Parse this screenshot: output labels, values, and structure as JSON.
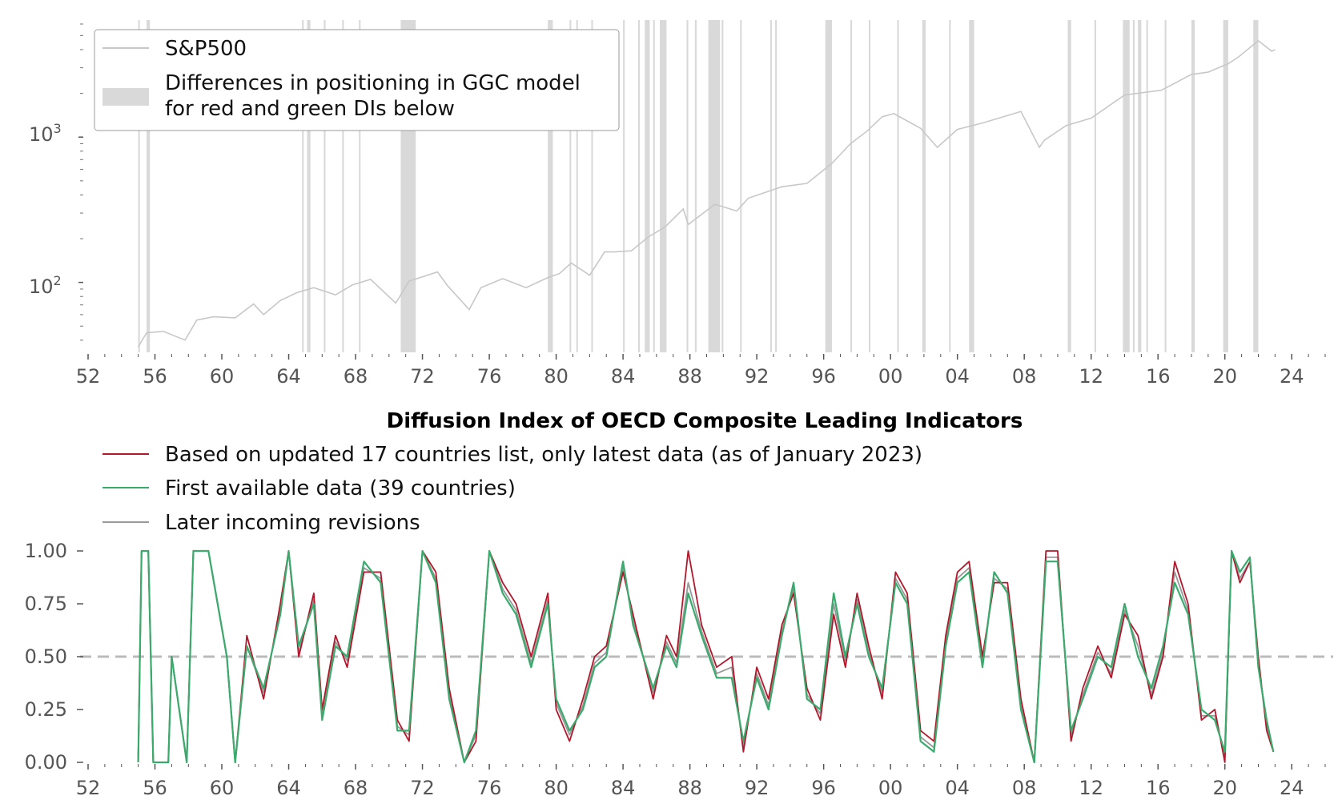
{
  "chart_data": [
    {
      "type": "line",
      "yscale": "log",
      "title": "",
      "xlabel": "",
      "ylabel": "",
      "xlim": [
        1952,
        2026
      ],
      "ylim": [
        33,
        6000
      ],
      "x_tick_labels": [
        "52",
        "56",
        "60",
        "64",
        "68",
        "72",
        "76",
        "80",
        "84",
        "88",
        "92",
        "96",
        "00",
        "04",
        "08",
        "12",
        "16",
        "20",
        "24"
      ],
      "y_tick_labels": [
        {
          "base": "10",
          "exp": "2",
          "value": 100
        },
        {
          "base": "10",
          "exp": "3",
          "value": 1000
        }
      ],
      "legend": [
        {
          "label": "S&P500",
          "kind": "line",
          "color": "#c8c8c8"
        },
        {
          "label": "Differences in positioning in GGC model",
          "label2": "for red and green DIs below",
          "kind": "patch",
          "color": "#d9d9d9"
        }
      ],
      "legend_position": "top-left",
      "series": [
        {
          "name": "S&P500",
          "color": "#c8c8c8",
          "x": [
            1955.0,
            1955.5,
            1956.5,
            1957.8,
            1958.5,
            1959.5,
            1960.8,
            1961.9,
            1962.5,
            1963.5,
            1964.5,
            1965.5,
            1966.8,
            1967.8,
            1968.9,
            1970.4,
            1971.2,
            1972.9,
            1973.5,
            1974.8,
            1975.5,
            1976.8,
            1978.2,
            1979.5,
            1980.2,
            1980.9,
            1982.0,
            1982.9,
            1983.5,
            1984.5,
            1985.5,
            1986.5,
            1987.6,
            1987.9,
            1989.5,
            1990.8,
            1991.5,
            1993.5,
            1995.0,
            1996.5,
            1997.6,
            1998.6,
            1999.5,
            2000.2,
            2001.8,
            2002.8,
            2004.0,
            2005.5,
            2007.8,
            2008.9,
            2009.2,
            2010.5,
            2012.0,
            2014.0,
            2015.5,
            2016.2,
            2018.0,
            2019.0,
            2020.2,
            2020.8,
            2022.0,
            2022.8,
            2023.0
          ],
          "y": [
            36,
            45,
            46,
            40,
            55,
            58,
            57,
            71,
            60,
            75,
            85,
            92,
            82,
            96,
            105,
            72,
            102,
            118,
            95,
            65,
            92,
            106,
            92,
            108,
            115,
            136,
            112,
            162,
            162,
            165,
            205,
            240,
            320,
            250,
            345,
            310,
            380,
            455,
            480,
            660,
            900,
            1100,
            1380,
            1450,
            1150,
            850,
            1130,
            1250,
            1500,
            850,
            950,
            1200,
            1350,
            1950,
            2050,
            2100,
            2700,
            2800,
            3200,
            3550,
            4600,
            3900,
            4000
          ]
        }
      ],
      "shaded_regions": [
        [
          1955.0,
          1955.1
        ],
        [
          1955.5,
          1955.7
        ],
        [
          1964.8,
          1964.9
        ],
        [
          1965.1,
          1965.3
        ],
        [
          1966.1,
          1966.2
        ],
        [
          1967.2,
          1967.3
        ],
        [
          1968.2,
          1968.3
        ],
        [
          1970.7,
          1971.6
        ],
        [
          1979.5,
          1979.8
        ],
        [
          1980.8,
          1980.9
        ],
        [
          1981.2,
          1981.3
        ],
        [
          1982.1,
          1982.2
        ],
        [
          1984.0,
          1984.1
        ],
        [
          1984.9,
          1985.0
        ],
        [
          1985.3,
          1985.6
        ],
        [
          1985.8,
          1985.9
        ],
        [
          1986.2,
          1986.6
        ],
        [
          1987.8,
          1987.9
        ],
        [
          1988.3,
          1988.4
        ],
        [
          1989.1,
          1989.8
        ],
        [
          1989.9,
          1990.0
        ],
        [
          1991.0,
          1991.1
        ],
        [
          1992.8,
          1992.9
        ],
        [
          1993.1,
          1993.2
        ],
        [
          1996.1,
          1996.5
        ],
        [
          1997.6,
          1997.7
        ],
        [
          1998.7,
          1998.8
        ],
        [
          2000.4,
          2000.5
        ],
        [
          2001.9,
          2002.1
        ],
        [
          2003.5,
          2003.6
        ],
        [
          2004.7,
          2005.0
        ],
        [
          2010.6,
          2010.8
        ],
        [
          2012.2,
          2012.3
        ],
        [
          2013.9,
          2014.3
        ],
        [
          2014.5,
          2014.6
        ],
        [
          2014.8,
          2015.0
        ],
        [
          2015.3,
          2015.4
        ],
        [
          2016.4,
          2016.5
        ],
        [
          2018.0,
          2018.2
        ],
        [
          2019.9,
          2020.2
        ],
        [
          2021.7,
          2022.0
        ]
      ]
    },
    {
      "type": "line",
      "title": "Diffusion Index of OECD Composite Leading Indicators",
      "xlabel": "",
      "ylabel": "",
      "xlim": [
        1952,
        2026
      ],
      "ylim": [
        0,
        1
      ],
      "x_tick_labels": [
        "52",
        "56",
        "60",
        "64",
        "68",
        "72",
        "76",
        "80",
        "84",
        "88",
        "92",
        "96",
        "00",
        "04",
        "08",
        "12",
        "16",
        "20",
        "24"
      ],
      "y_tick_labels": [
        "0.00",
        "0.25",
        "0.50",
        "0.75",
        "1.00"
      ],
      "reference_line": {
        "y": 0.5,
        "style": "dashed"
      },
      "legend": [
        {
          "label": "Based on updated 17 countries list, only latest data (as of January 2023)",
          "color": "#b2182b"
        },
        {
          "label": "First available data (39 countries)",
          "color": "#3aaa6d"
        },
        {
          "label": "Later incoming revisions",
          "color": "#999999"
        }
      ],
      "legend_position": "above plot, left",
      "series": [
        {
          "name": "Based on updated 17 countries list, only latest data (as of January 2023)",
          "color": "#b2182b",
          "x": [
            1955.0,
            1955.2,
            1955.6,
            1955.9,
            1956.8,
            1957.0,
            1957.9,
            1958.3,
            1959.2,
            1960.3,
            1960.8,
            1961.5,
            1962.5,
            1963.5,
            1964.0,
            1964.6,
            1965.5,
            1966.0,
            1966.8,
            1967.5,
            1968.5,
            1969.5,
            1970.5,
            1971.2,
            1972.0,
            1972.8,
            1973.6,
            1974.5,
            1975.2,
            1976.0,
            1976.8,
            1977.6,
            1978.5,
            1979.5,
            1980.0,
            1980.8,
            1981.6,
            1982.3,
            1983.0,
            1984.0,
            1984.6,
            1985.8,
            1986.6,
            1987.2,
            1987.9,
            1988.7,
            1989.6,
            1990.5,
            1991.2,
            1992.0,
            1992.7,
            1993.5,
            1994.2,
            1995.0,
            1995.8,
            1996.6,
            1997.3,
            1998.0,
            1998.7,
            1999.5,
            2000.3,
            2001.0,
            2001.8,
            2002.6,
            2003.3,
            2004.0,
            2004.7,
            2005.5,
            2006.2,
            2007.0,
            2007.8,
            2008.6,
            2009.3,
            2010.0,
            2010.8,
            2011.5,
            2012.4,
            2013.2,
            2014.0,
            2014.8,
            2015.6,
            2016.3,
            2017.0,
            2017.8,
            2018.6,
            2019.4,
            2020.0,
            2020.4,
            2020.9,
            2021.5,
            2022.0,
            2022.5,
            2022.9
          ],
          "y": [
            0.0,
            1.0,
            1.0,
            0.0,
            0.0,
            0.5,
            0.0,
            1.0,
            1.0,
            0.5,
            0.0,
            0.6,
            0.3,
            0.75,
            1.0,
            0.5,
            0.8,
            0.25,
            0.6,
            0.45,
            0.9,
            0.9,
            0.2,
            0.1,
            1.0,
            0.9,
            0.35,
            0.0,
            0.1,
            1.0,
            0.85,
            0.75,
            0.5,
            0.8,
            0.25,
            0.1,
            0.3,
            0.5,
            0.55,
            0.9,
            0.7,
            0.3,
            0.6,
            0.5,
            1.0,
            0.65,
            0.45,
            0.5,
            0.05,
            0.45,
            0.3,
            0.65,
            0.8,
            0.35,
            0.2,
            0.7,
            0.45,
            0.8,
            0.55,
            0.3,
            0.9,
            0.8,
            0.15,
            0.1,
            0.6,
            0.9,
            0.95,
            0.5,
            0.85,
            0.85,
            0.3,
            0.0,
            1.0,
            1.0,
            0.1,
            0.35,
            0.55,
            0.4,
            0.7,
            0.6,
            0.3,
            0.5,
            0.95,
            0.75,
            0.2,
            0.25,
            0.0,
            1.0,
            0.85,
            0.95,
            0.5,
            0.15,
            0.05
          ]
        },
        {
          "name": "First available data (39 countries)",
          "color": "#3aaa6d",
          "x": [
            1955.0,
            1955.2,
            1955.6,
            1955.9,
            1956.8,
            1957.0,
            1957.9,
            1958.3,
            1959.2,
            1960.3,
            1960.8,
            1961.5,
            1962.5,
            1963.5,
            1964.0,
            1964.6,
            1965.5,
            1966.0,
            1966.8,
            1967.5,
            1968.5,
            1969.5,
            1970.5,
            1971.2,
            1972.0,
            1972.8,
            1973.6,
            1974.5,
            1975.2,
            1976.0,
            1976.8,
            1977.6,
            1978.5,
            1979.5,
            1980.0,
            1980.8,
            1981.6,
            1982.3,
            1983.0,
            1984.0,
            1984.6,
            1985.8,
            1986.6,
            1987.2,
            1987.9,
            1988.7,
            1989.6,
            1990.5,
            1991.2,
            1992.0,
            1992.7,
            1993.5,
            1994.2,
            1995.0,
            1995.8,
            1996.6,
            1997.3,
            1998.0,
            1998.7,
            1999.5,
            2000.3,
            2001.0,
            2001.8,
            2002.6,
            2003.3,
            2004.0,
            2004.7,
            2005.5,
            2006.2,
            2007.0,
            2007.8,
            2008.6,
            2009.3,
            2010.0,
            2010.8,
            2011.5,
            2012.4,
            2013.2,
            2014.0,
            2014.8,
            2015.6,
            2016.3,
            2017.0,
            2017.8,
            2018.6,
            2019.4,
            2020.0,
            2020.4,
            2020.9,
            2021.5,
            2022.0,
            2022.5,
            2022.9
          ],
          "y": [
            0.0,
            1.0,
            1.0,
            0.0,
            0.0,
            0.5,
            0.0,
            1.0,
            1.0,
            0.5,
            0.0,
            0.55,
            0.35,
            0.7,
            1.0,
            0.55,
            0.75,
            0.2,
            0.55,
            0.5,
            0.95,
            0.85,
            0.15,
            0.15,
            1.0,
            0.85,
            0.3,
            0.0,
            0.15,
            1.0,
            0.8,
            0.7,
            0.45,
            0.75,
            0.3,
            0.15,
            0.25,
            0.45,
            0.5,
            0.95,
            0.65,
            0.35,
            0.55,
            0.45,
            0.8,
            0.6,
            0.4,
            0.4,
            0.1,
            0.4,
            0.25,
            0.6,
            0.85,
            0.3,
            0.25,
            0.8,
            0.5,
            0.75,
            0.5,
            0.35,
            0.85,
            0.75,
            0.1,
            0.05,
            0.55,
            0.85,
            0.9,
            0.45,
            0.9,
            0.8,
            0.25,
            0.0,
            0.95,
            0.95,
            0.15,
            0.3,
            0.5,
            0.45,
            0.75,
            0.5,
            0.35,
            0.55,
            0.85,
            0.7,
            0.25,
            0.2,
            0.05,
            1.0,
            0.9,
            0.97,
            0.45,
            0.2,
            0.05
          ]
        },
        {
          "name": "Later incoming revisions",
          "color": "#999999",
          "x": [
            1955.0,
            1955.2,
            1955.6,
            1955.9,
            1956.8,
            1957.0,
            1957.9,
            1958.3,
            1959.2,
            1960.3,
            1960.8,
            1961.5,
            1962.5,
            1963.5,
            1964.0,
            1964.6,
            1965.5,
            1966.0,
            1966.8,
            1967.5,
            1968.5,
            1969.5,
            1970.5,
            1971.2,
            1972.0,
            1972.8,
            1973.6,
            1974.5,
            1975.2,
            1976.0,
            1976.8,
            1977.6,
            1978.5,
            1979.5,
            1980.0,
            1980.8,
            1981.6,
            1982.3,
            1983.0,
            1984.0,
            1984.6,
            1985.8,
            1986.6,
            1987.2,
            1987.9,
            1988.7,
            1989.6,
            1990.5,
            1991.2,
            1992.0,
            1992.7,
            1993.5,
            1994.2,
            1995.0,
            1995.8,
            1996.6,
            1997.3,
            1998.0,
            1998.7,
            1999.5,
            2000.3,
            2001.0,
            2001.8,
            2002.6,
            2003.3,
            2004.0,
            2004.7,
            2005.5,
            2006.2,
            2007.0,
            2007.8,
            2008.6,
            2009.3,
            2010.0,
            2010.8,
            2011.5,
            2012.4,
            2013.2,
            2014.0,
            2014.8,
            2015.6,
            2016.3,
            2017.0,
            2017.8,
            2018.6,
            2019.4,
            2020.0,
            2020.4,
            2020.9,
            2021.5,
            2022.0,
            2022.5,
            2022.9
          ],
          "y": [
            0.0,
            1.0,
            1.0,
            0.0,
            0.0,
            0.5,
            0.0,
            1.0,
            1.0,
            0.5,
            0.0,
            0.55,
            0.33,
            0.72,
            1.0,
            0.52,
            0.77,
            0.22,
            0.57,
            0.48,
            0.92,
            0.87,
            0.17,
            0.13,
            1.0,
            0.87,
            0.32,
            0.0,
            0.13,
            1.0,
            0.82,
            0.72,
            0.47,
            0.77,
            0.28,
            0.13,
            0.27,
            0.47,
            0.52,
            0.92,
            0.67,
            0.33,
            0.57,
            0.47,
            0.85,
            0.62,
            0.42,
            0.45,
            0.08,
            0.42,
            0.27,
            0.62,
            0.82,
            0.32,
            0.23,
            0.75,
            0.48,
            0.77,
            0.52,
            0.33,
            0.87,
            0.77,
            0.12,
            0.07,
            0.57,
            0.87,
            0.92,
            0.47,
            0.87,
            0.82,
            0.27,
            0.0,
            0.97,
            0.97,
            0.13,
            0.32,
            0.52,
            0.42,
            0.72,
            0.55,
            0.32,
            0.52,
            0.9,
            0.72,
            0.22,
            0.22,
            0.03,
            1.0,
            0.87,
            0.95,
            0.47,
            0.17,
            0.05
          ]
        }
      ]
    }
  ]
}
